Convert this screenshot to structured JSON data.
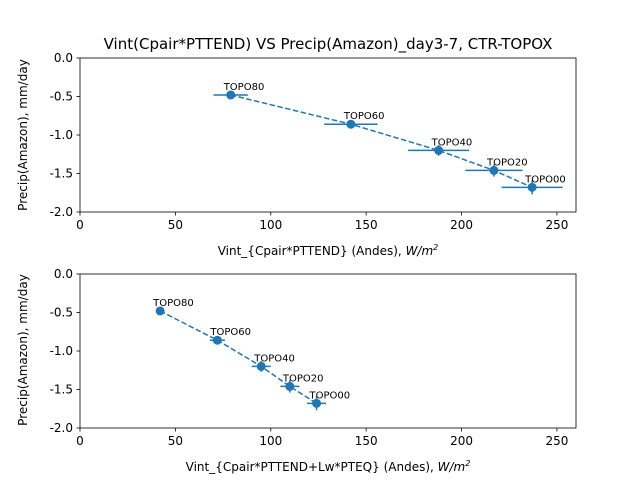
{
  "chart_data": [
    {
      "type": "scatter",
      "title": "Vint(Cpair*PTTEND) VS Precip(Amazon)_day3-7, CTR-TOPOX",
      "xlabel": "Vint_{Cpair*PTTEND} (Andes), ",
      "xlabel_unit": "W/m",
      "xlabel_unit_exp": "2",
      "ylabel": "Precip(Amazon), mm/day",
      "xlim": [
        0,
        260
      ],
      "ylim": [
        -2.0,
        0.0
      ],
      "xticks": [
        "0",
        "50",
        "100",
        "150",
        "200",
        "250"
      ],
      "yticks": [
        "0.0",
        "-0.5",
        "-1.0",
        "-1.5",
        "-2.0"
      ],
      "grid": false,
      "color": "#1f77b4",
      "line_style": "dashed",
      "points": [
        {
          "label": "TOPO80",
          "x": 79,
          "y": -0.48,
          "xerr": 9,
          "yerr": 0.05
        },
        {
          "label": "TOPO60",
          "x": 142,
          "y": -0.86,
          "xerr": 14,
          "yerr": 0.05
        },
        {
          "label": "TOPO40",
          "x": 188,
          "y": -1.2,
          "xerr": 16,
          "yerr": 0.07
        },
        {
          "label": "TOPO20",
          "x": 217,
          "y": -1.46,
          "xerr": 15,
          "yerr": 0.08
        },
        {
          "label": "TOPO00",
          "x": 237,
          "y": -1.68,
          "xerr": 16,
          "yerr": 0.09
        }
      ]
    },
    {
      "type": "scatter",
      "xlabel": "Vint_{Cpair*PTTEND+Lw*PTEQ} (Andes), ",
      "xlabel_unit": "W/m",
      "xlabel_unit_exp": "2",
      "ylabel": "Precip(Amazon), mm/day",
      "xlim": [
        0,
        260
      ],
      "ylim": [
        -2.0,
        0.0
      ],
      "xticks": [
        "0",
        "50",
        "100",
        "150",
        "200",
        "250"
      ],
      "yticks": [
        "0.0",
        "-0.5",
        "-1.0",
        "-1.5",
        "-2.0"
      ],
      "grid": false,
      "color": "#1f77b4",
      "line_style": "dashed",
      "points": [
        {
          "label": "TOPO80",
          "x": 42,
          "y": -0.48,
          "xerr": 2,
          "yerr": 0.05
        },
        {
          "label": "TOPO60",
          "x": 72,
          "y": -0.86,
          "xerr": 4,
          "yerr": 0.05
        },
        {
          "label": "TOPO40",
          "x": 95,
          "y": -1.2,
          "xerr": 5,
          "yerr": 0.07
        },
        {
          "label": "TOPO20",
          "x": 110,
          "y": -1.46,
          "xerr": 5,
          "yerr": 0.08
        },
        {
          "label": "TOPO00",
          "x": 124,
          "y": -1.68,
          "xerr": 5,
          "yerr": 0.09
        }
      ]
    }
  ]
}
